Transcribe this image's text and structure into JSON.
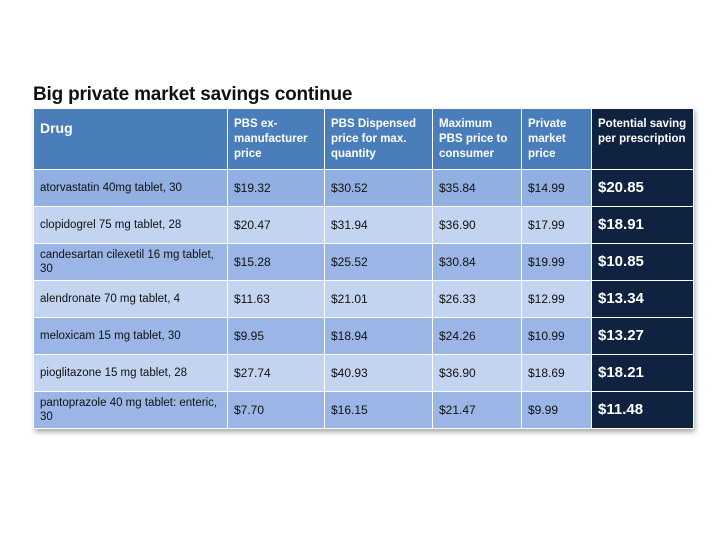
{
  "title": "Big private market savings continue",
  "table": {
    "headers": [
      "Drug",
      "PBS ex-manufacturer price",
      "PBS Dispensed price for max. quantity",
      "Maximum PBS price to consumer",
      "Private market price",
      "Potential saving per prescription"
    ],
    "rows": [
      [
        "atorvastatin 40mg tablet, 30",
        "$19.32",
        "$30.52",
        "$35.84",
        "$14.99",
        "$20.85"
      ],
      [
        "clopidogrel 75 mg tablet, 28",
        "$20.47",
        "$31.94",
        "$36.90",
        "$17.99",
        "$18.91"
      ],
      [
        "candesartan cilexetil 16 mg tablet, 30",
        "$15.28",
        "$25.52",
        "$30.84",
        "$19.99",
        "$10.85"
      ],
      [
        "alendronate 70 mg tablet, 4",
        "$11.63",
        "$21.01",
        "$26.33",
        "$12.99",
        "$13.34"
      ],
      [
        "meloxicam 15 mg tablet, 30",
        "$9.95",
        "$18.94",
        "$24.26",
        "$10.99",
        "$13.27"
      ],
      [
        "pioglitazone 15 mg tablet, 28",
        "$27.74",
        "$40.93",
        "$36.90",
        "$18.69",
        "$18.21"
      ],
      [
        "pantoprazole 40 mg tablet: enteric, 30",
        "$7.70",
        "$16.15",
        "$21.47",
        "$9.99",
        "$11.48"
      ]
    ]
  },
  "colors": {
    "header_blue": "#4a7ebb",
    "saving_column_navy": "#0f2340",
    "row_dark": "#9bb6e6",
    "row_light": "#c3d4f0"
  }
}
